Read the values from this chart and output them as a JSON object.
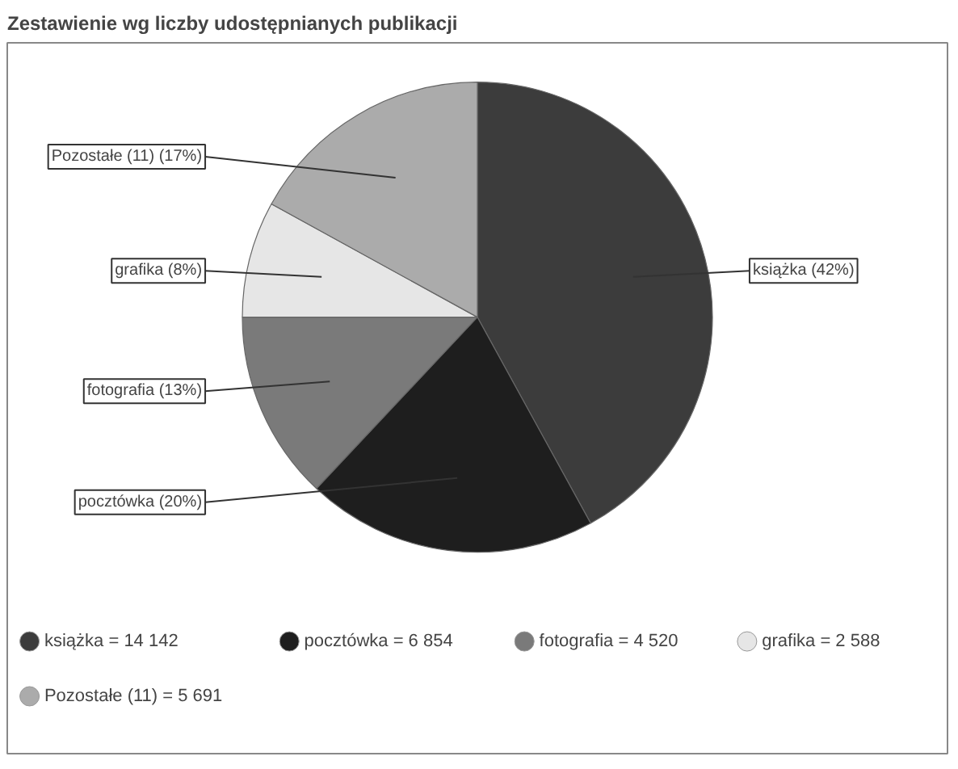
{
  "chart_data": {
    "type": "pie",
    "title": "Zestawienie wg liczby udostępnianych publikacji",
    "categories": [
      "książka = 14 142",
      "pocztówka = 6 854",
      "fotografia = 4 520",
      "grafika = 2 588",
      "Pozostałe (11) = 5 691"
    ],
    "values": [
      42,
      20,
      13,
      8,
      17
    ],
    "colors": [
      "#3c3c3c",
      "#1e1e1e",
      "#7a7a7a",
      "#e6e6e6",
      "#ababab"
    ],
    "value_labels": [
      "książka (42%)",
      "pocztówka (20%)",
      "fotografia (13%)",
      "grafika (8%)",
      "Pozostałe (11) (17%)"
    ],
    "legend": "bottom"
  }
}
